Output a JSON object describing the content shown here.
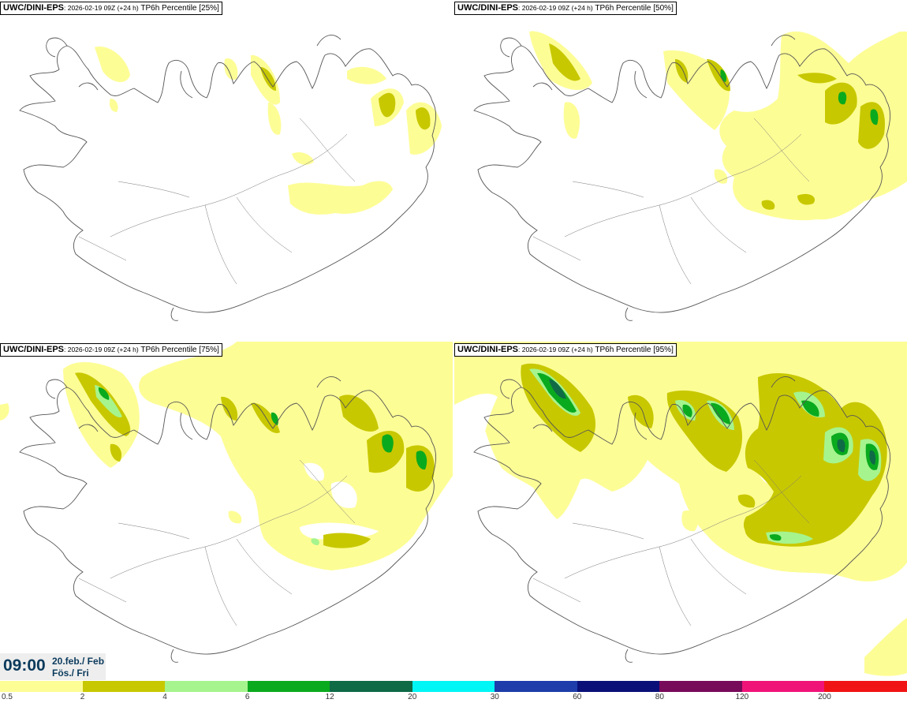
{
  "panels": [
    {
      "model": "UWC/DINI-EPS",
      "run": ": 2026-02-19 09Z (+24 h)",
      "label": " TP6h Percentile [25%]"
    },
    {
      "model": "UWC/DINI-EPS",
      "run": ": 2026-02-19 09Z (+24 h)",
      "label": " TP6h Percentile [50%]"
    },
    {
      "model": "UWC/DINI-EPS",
      "run": ": 2026-02-19 09Z (+24 h)",
      "label": " TP6h Percentile [75%]"
    },
    {
      "model": "UWC/DINI-EPS",
      "run": ": 2026-02-19 09Z (+24 h)",
      "label": " TP6h Percentile [95%]"
    }
  ],
  "valid_time": {
    "clock": "09:00",
    "date_line": "20.feb./ Feb",
    "day_line": "Fös./ Fri"
  },
  "legend": {
    "ticks": [
      "0.5",
      "2",
      "4",
      "6",
      "12",
      "20",
      "30",
      "60",
      "80",
      "120",
      "200"
    ],
    "colors": [
      "#fdfd96",
      "#c8c800",
      "#a6f48e",
      "#0aaa1e",
      "#0f6a46",
      "#00f5f5",
      "#1e3caa",
      "#0a1078",
      "#780a5a",
      "#f01478",
      "#f01414"
    ]
  },
  "colors": {
    "coast": "#555555",
    "background": "#ffffff",
    "time_text": "#0a3a5c"
  }
}
